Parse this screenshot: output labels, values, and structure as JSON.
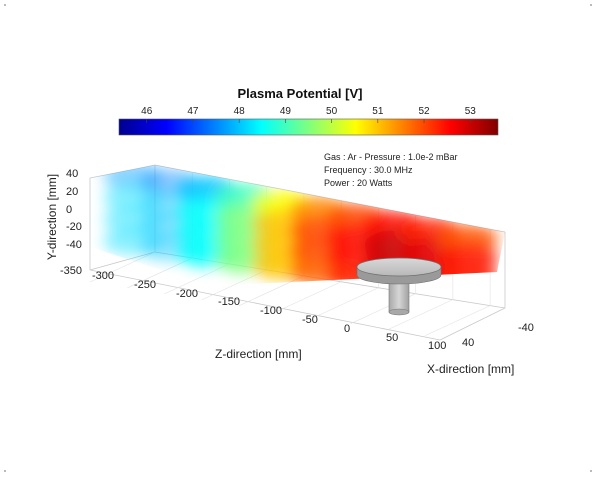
{
  "chart_data": {
    "type": "heatmap",
    "title": "Plasma Potential [V]",
    "colorbar": {
      "ticks": [
        46,
        47,
        48,
        49,
        50,
        51,
        52,
        53
      ],
      "range": [
        45.4,
        53.6
      ],
      "colormap": "jet",
      "position": "top"
    },
    "annotations": [
      "Gas : Ar - Pressure : 1.0e-2 mBar",
      "Frequency : 30.0 MHz",
      "Power : 20 Watts"
    ],
    "xlabel": "X-direction [mm]",
    "ylabel": "Y-direction [mm]",
    "zlabel": "Z-direction [mm]",
    "x_ticks": [
      "-40",
      "40"
    ],
    "y_ticks": [
      "40",
      "20",
      "0",
      "-20",
      "-40"
    ],
    "z_ticks": [
      "-350",
      "-300",
      "-250",
      "-200",
      "-150",
      "-100",
      "-50",
      "0",
      "50",
      "100"
    ],
    "xlim": [
      -40,
      40
    ],
    "ylim": [
      -40,
      40
    ],
    "zlim": [
      -350,
      120
    ],
    "grid": true,
    "potential_profile_along_z": {
      "z": [
        -350,
        -300,
        -250,
        -200,
        -150,
        -100,
        -50,
        0,
        50,
        100
      ],
      "potential": [
        48.2,
        48.0,
        48.5,
        49.5,
        51.0,
        52.0,
        52.5,
        53.0,
        52.8,
        52.4
      ]
    }
  }
}
